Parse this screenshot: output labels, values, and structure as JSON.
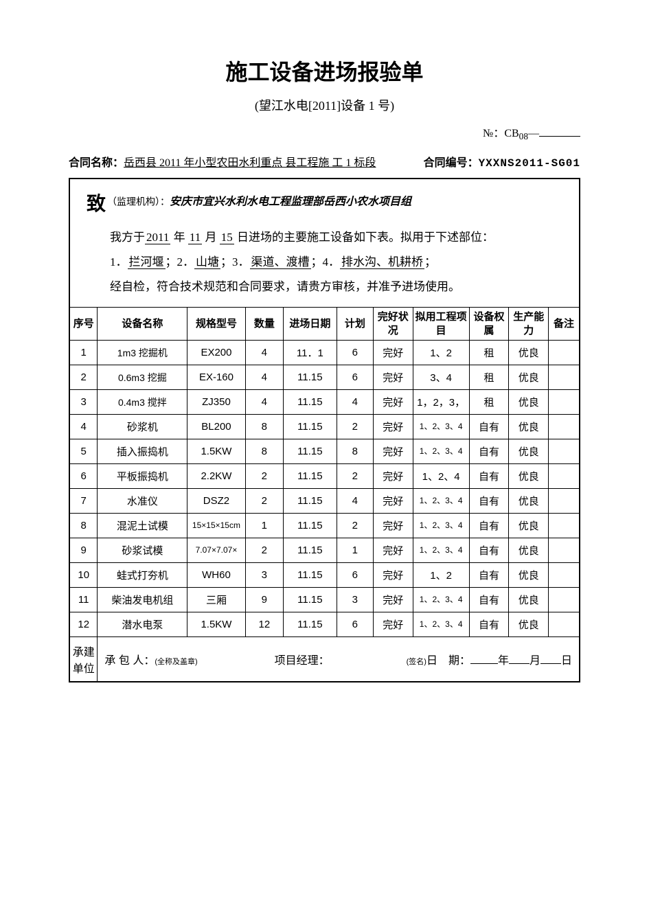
{
  "title": "施工设备进场报验单",
  "subtitle": "(望江水电[2011]设备 1 号)",
  "docNoLabel": "№：CB",
  "docNoSub": "08",
  "docNoDash": "—",
  "contract": {
    "nameLabel": "合同名称：",
    "nameValue": "岳西县 2011 年小型农田水利重点  县工程施 工 1 标段",
    "codeLabel": "合同编号：",
    "codeValue": "YXXNS2011-SG01"
  },
  "to": {
    "char": "致",
    "paren": "（监理机构）：",
    "org": "安庆市宜兴水利水电工程监理部岳西小农水项目组"
  },
  "para1a": "我方于",
  "para1y": "2011",
  "para1yc": " 年 ",
  "para1m": "11",
  "para1mc": " 月 ",
  "para1d": "15",
  "para1b": " 日进场的主要施工设备如下表。拟用于下述部位：",
  "para2a": "1．",
  "para2b": "拦河堰",
  "para2c": "；2．",
  "para2d": "山塘",
  "para2e": "；3．",
  "para2f": "渠道、渡槽",
  "para2g": "；4．",
  "para2h": "排水沟、机耕桥",
  "para2i": "；",
  "para3": "经自检，符合技术规范和合同要求，请贵方审核，并准予进场使用。",
  "headers": {
    "c0": "序号",
    "c1": "设备名称",
    "c2": "规格型号",
    "c3": "数量",
    "c4": "进场日期",
    "c5": "计划",
    "c6": "完好状况",
    "c7": "拟用工程项目",
    "c8": "设备权属",
    "c9": "生产能力",
    "c10": "备注"
  },
  "rows": [
    {
      "n": "1",
      "name": "1m3 挖掘机",
      "spec": "EX200",
      "qty": "4",
      "date": "11．1",
      "plan": "6",
      "cond": "完好",
      "use": "1、2",
      "own": "租",
      "cap": "优良",
      "rem": ""
    },
    {
      "n": "2",
      "name": "0.6m3 挖掘",
      "spec": "EX-160",
      "qty": "4",
      "date": "11.15",
      "plan": "6",
      "cond": "完好",
      "use": "3、4",
      "own": "租",
      "cap": "优良",
      "rem": ""
    },
    {
      "n": "3",
      "name": "0.4m3 搅拌",
      "spec": "ZJ350",
      "qty": "4",
      "date": "11.15",
      "plan": "4",
      "cond": "完好",
      "use": "1，2，3，",
      "own": "租",
      "cap": "优良",
      "rem": ""
    },
    {
      "n": "4",
      "name": "砂浆机",
      "spec": "BL200",
      "qty": "8",
      "date": "11.15",
      "plan": "2",
      "cond": "完好",
      "use": "1、2、3、4",
      "own": "自有",
      "cap": "优良",
      "rem": ""
    },
    {
      "n": "5",
      "name": "插入振捣机",
      "spec": "1.5KW",
      "qty": "8",
      "date": "11.15",
      "plan": "8",
      "cond": "完好",
      "use": "1、2、3、4",
      "own": "自有",
      "cap": "优良",
      "rem": ""
    },
    {
      "n": "6",
      "name": "平板振捣机",
      "spec": "2.2KW",
      "qty": "2",
      "date": "11.15",
      "plan": "2",
      "cond": "完好",
      "use": "1、2、4",
      "own": "自有",
      "cap": "优良",
      "rem": ""
    },
    {
      "n": "7",
      "name": "水准仪",
      "spec": "DSZ2",
      "qty": "2",
      "date": "11.15",
      "plan": "4",
      "cond": "完好",
      "use": "1、2、3、4",
      "own": "自有",
      "cap": "优良",
      "rem": ""
    },
    {
      "n": "8",
      "name": "混泥土试模",
      "spec": "15×15×15cm",
      "qty": "1",
      "date": "11.15",
      "plan": "2",
      "cond": "完好",
      "use": "1、2、3、4",
      "own": "自有",
      "cap": "优良",
      "rem": ""
    },
    {
      "n": "9",
      "name": "砂浆试模",
      "spec": "7.07×7.07×",
      "qty": "2",
      "date": "11.15",
      "plan": "1",
      "cond": "完好",
      "use": "1、2、3、4",
      "own": "自有",
      "cap": "优良",
      "rem": ""
    },
    {
      "n": "10",
      "name": "蛙式打夯机",
      "spec": "WH60",
      "qty": "3",
      "date": "11.15",
      "plan": "6",
      "cond": "完好",
      "use": "1、2",
      "own": "自有",
      "cap": "优良",
      "rem": ""
    },
    {
      "n": "11",
      "name": "柴油发电机组",
      "spec": "三厢",
      "qty": "9",
      "date": "11.15",
      "plan": "3",
      "cond": "完好",
      "use": "1、2、3、4",
      "own": "自有",
      "cap": "优良",
      "rem": ""
    },
    {
      "n": "12",
      "name": "潜水电泵",
      "spec": "1.5KW",
      "qty": "12",
      "date": "11.15",
      "plan": "6",
      "cond": "完好",
      "use": "1、2、3、4",
      "own": "自有",
      "cap": "优良",
      "rem": ""
    }
  ],
  "footer": {
    "unitLabel": "承建单位",
    "contractor": "承 包 人：",
    "contractorNote": "(全称及盖章)",
    "pm": "项目经理：",
    "pmNote": "(签名)",
    "date": "日　期：",
    "y": "年",
    "m": "月",
    "d": "日"
  },
  "colWidths": [
    "36px",
    "118px",
    "76px",
    "50px",
    "70px",
    "48px",
    "52px",
    "74px",
    "52px",
    "52px",
    "40px"
  ]
}
